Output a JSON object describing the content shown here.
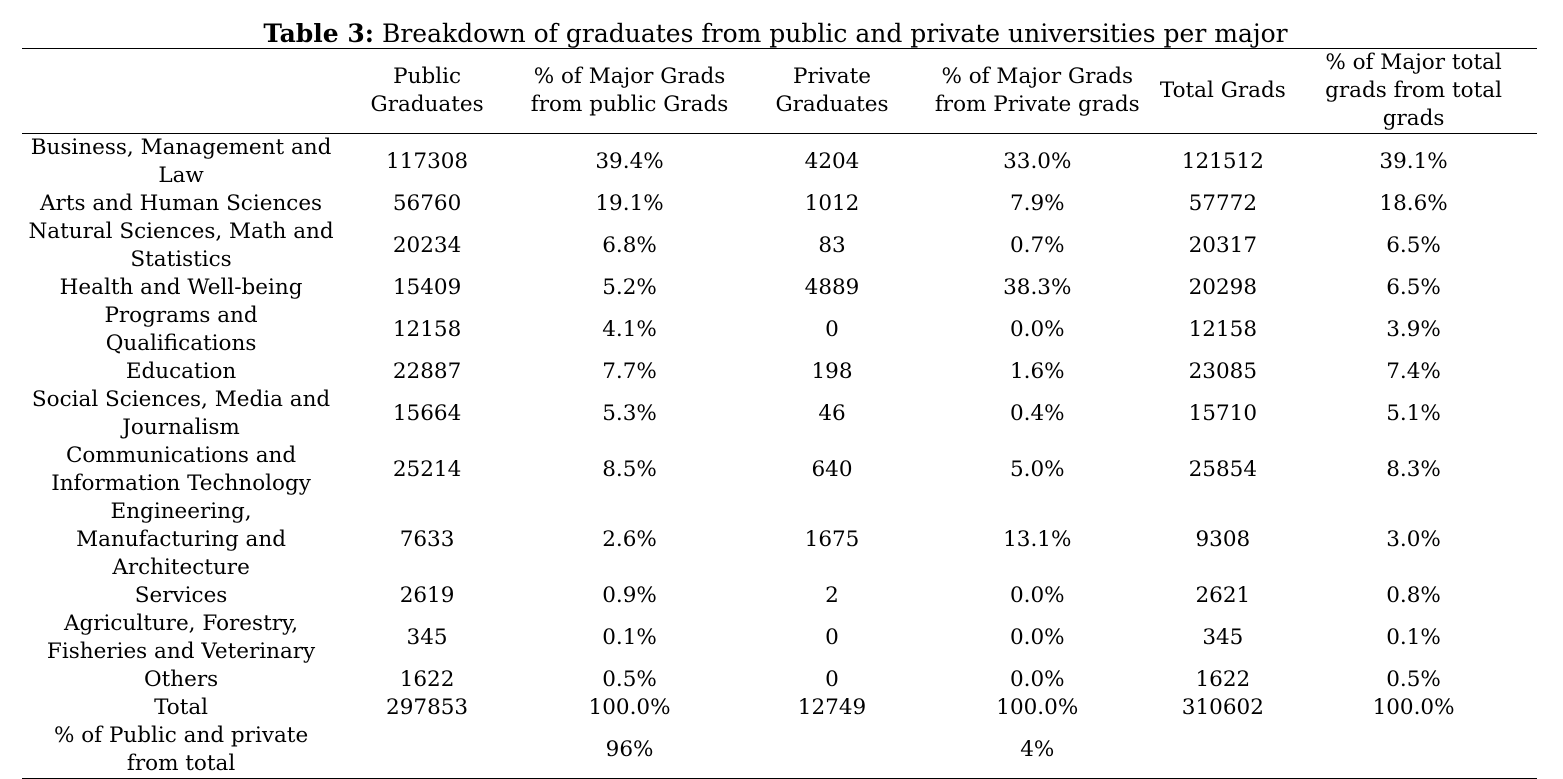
{
  "caption": {
    "label": "Table 3:",
    "text": "Breakdown of graduates from public and private universities per major"
  },
  "columns": [
    "",
    "Public Graduates",
    "% of Major Grads from public Grads",
    "Private Graduates",
    "% of Major Grads from Private grads",
    "Total Grads",
    "% of Major total grads from total grads"
  ],
  "rows": [
    {
      "major": "Business, Management and Law",
      "public": "117308",
      "pct_public": "39.4%",
      "private": "4204",
      "pct_private": "33.0%",
      "total": "121512",
      "pct_total": "39.1%"
    },
    {
      "major": "Arts and Human Sciences",
      "public": "56760",
      "pct_public": "19.1%",
      "private": "1012",
      "pct_private": "7.9%",
      "total": "57772",
      "pct_total": "18.6%"
    },
    {
      "major": "Natural Sciences, Math and Statistics",
      "public": "20234",
      "pct_public": "6.8%",
      "private": "83",
      "pct_private": "0.7%",
      "total": "20317",
      "pct_total": "6.5%"
    },
    {
      "major": "Health and Well-being",
      "public": "15409",
      "pct_public": "5.2%",
      "private": "4889",
      "pct_private": "38.3%",
      "total": "20298",
      "pct_total": "6.5%"
    },
    {
      "major": "Programs and Qualifications",
      "public": "12158",
      "pct_public": "4.1%",
      "private": "0",
      "pct_private": "0.0%",
      "total": "12158",
      "pct_total": "3.9%"
    },
    {
      "major": "Education",
      "public": "22887",
      "pct_public": "7.7%",
      "private": "198",
      "pct_private": "1.6%",
      "total": "23085",
      "pct_total": "7.4%"
    },
    {
      "major": "Social Sciences, Media and Journalism",
      "public": "15664",
      "pct_public": "5.3%",
      "private": "46",
      "pct_private": "0.4%",
      "total": "15710",
      "pct_total": "5.1%"
    },
    {
      "major": "Communications and Information Technology",
      "public": "25214",
      "pct_public": "8.5%",
      "private": "640",
      "pct_private": "5.0%",
      "total": "25854",
      "pct_total": "8.3%"
    },
    {
      "major": "Engineering, Manufacturing and Architecture",
      "public": "7633",
      "pct_public": "2.6%",
      "private": "1675",
      "pct_private": "13.1%",
      "total": "9308",
      "pct_total": "3.0%"
    },
    {
      "major": "Services",
      "public": "2619",
      "pct_public": "0.9%",
      "private": "2",
      "pct_private": "0.0%",
      "total": "2621",
      "pct_total": "0.8%"
    },
    {
      "major": "Agriculture, Forestry, Fisheries and Veterinary",
      "public": "345",
      "pct_public": "0.1%",
      "private": "0",
      "pct_private": "0.0%",
      "total": "345",
      "pct_total": "0.1%"
    },
    {
      "major": "Others",
      "public": "1622",
      "pct_public": "0.5%",
      "private": "0",
      "pct_private": "0.0%",
      "total": "1622",
      "pct_total": "0.5%"
    },
    {
      "major": "Total",
      "public": "297853",
      "pct_public": "100.0%",
      "private": "12749",
      "pct_private": "100.0%",
      "total": "310602",
      "pct_total": "100.0%"
    },
    {
      "major": "% of Public and private from total",
      "public": "",
      "pct_public": "96%",
      "private": "",
      "pct_private": "4%",
      "total": "",
      "pct_total": ""
    }
  ]
}
